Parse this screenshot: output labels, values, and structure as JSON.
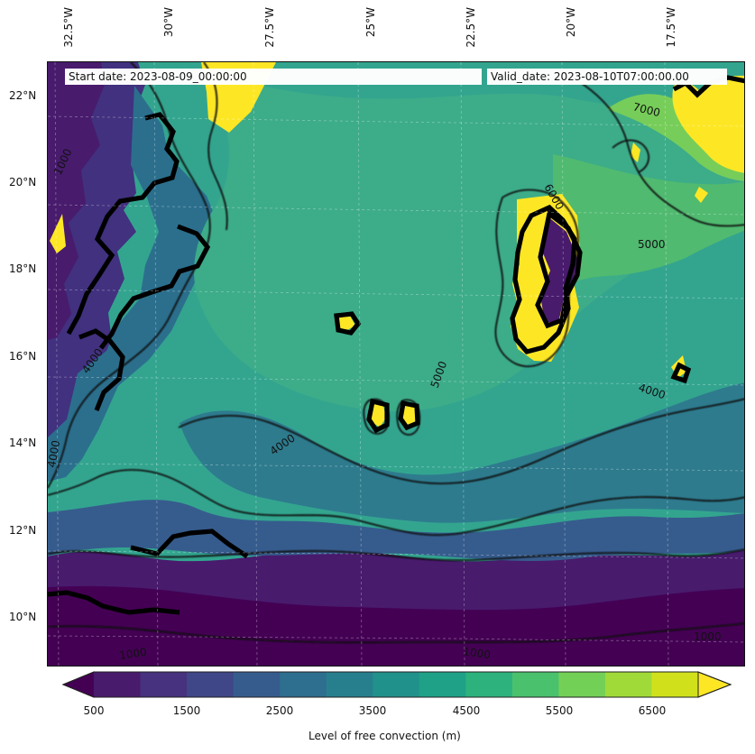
{
  "map": {
    "start_date": "Start date: 2023-08-09_00:00:00",
    "valid_date": "Valid_date: 2023-08-10T07:00:00.00",
    "top_ticks": [
      "32.5°W",
      "30°W",
      "27.5°W",
      "25°W",
      "22.5°W",
      "20°W",
      "17.5°W"
    ],
    "left_ticks": [
      "22°N",
      "20°N",
      "18°N",
      "16°N",
      "14°N",
      "12°N",
      "10°N"
    ],
    "contour_labels": [
      "7000",
      "5000",
      "4000",
      "4000",
      "1000",
      "1000",
      "1000",
      "6000",
      "4000",
      "5000",
      "1000",
      "4000"
    ]
  },
  "colorbar": {
    "label": "Level of free convection (m)",
    "ticks": [
      "500",
      "1500",
      "2500",
      "3500",
      "4500",
      "5500",
      "6500"
    ]
  },
  "chart_data": {
    "type": "map",
    "longitude_ticks": [
      "32.5°W",
      "30°W",
      "27.5°W",
      "25°W",
      "22.5°W",
      "20°W",
      "17.5°W"
    ],
    "latitude_ticks": [
      "22°N",
      "20°N",
      "18°N",
      "16°N",
      "14°N",
      "12°N",
      "10°N"
    ],
    "colorbar_ticks": [
      500,
      1500,
      2500,
      3500,
      4500,
      5500,
      6500
    ],
    "colorbar_levels": [
      500,
      1000,
      1500,
      2000,
      2500,
      3000,
      3500,
      4000,
      4500,
      5000,
      5500,
      6000,
      6500,
      7000
    ],
    "colors": [
      "#440154",
      "#481b6d",
      "#46327e",
      "#3f4788",
      "#365c8d",
      "#2e6e8e",
      "#277f8e",
      "#21918c",
      "#1fa187",
      "#2db27d",
      "#4ac16d",
      "#73d056",
      "#a0da39",
      "#d0e11c",
      "#fde725"
    ]
  }
}
